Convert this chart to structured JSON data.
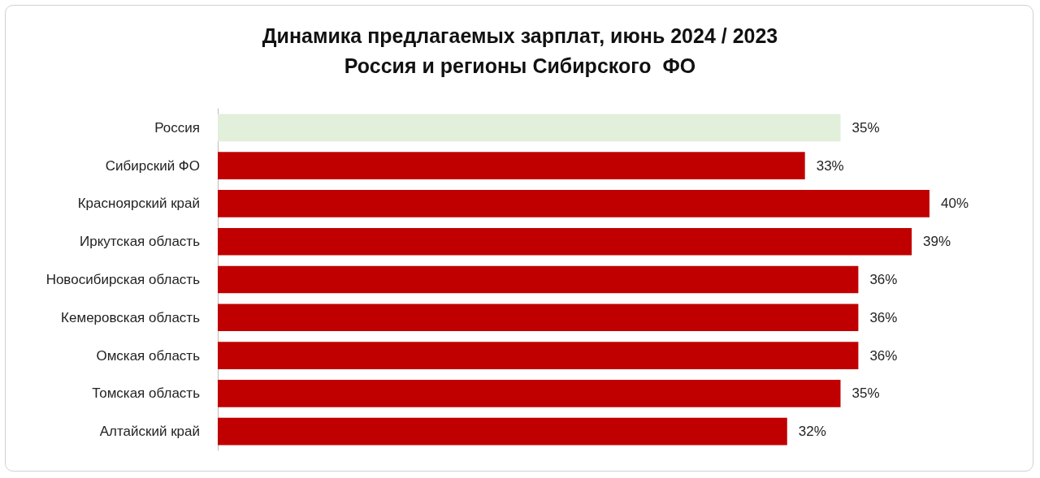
{
  "chart_data": {
    "type": "bar",
    "orientation": "horizontal",
    "title": "Динамика предлагаемых зарплат, июнь 2024 / 2023",
    "subtitle": "Россия и регионы Сибирского  ФО",
    "categories": [
      "Россия",
      "Сибирский ФО",
      "Красноярский край",
      "Иркутская область",
      "Новосибирская область",
      "Кемеровская область",
      "Омская область",
      "Томская область",
      "Алтайский край"
    ],
    "values": [
      35,
      33,
      40,
      39,
      36,
      36,
      36,
      35,
      32
    ],
    "value_labels": [
      "35%",
      "33%",
      "40%",
      "39%",
      "36%",
      "36%",
      "36%",
      "35%",
      "32%"
    ],
    "colors": [
      "#e2efda",
      "#c00000",
      "#c00000",
      "#c00000",
      "#c00000",
      "#c00000",
      "#c00000",
      "#c00000",
      "#c00000"
    ],
    "tick_labels": "y"
  }
}
